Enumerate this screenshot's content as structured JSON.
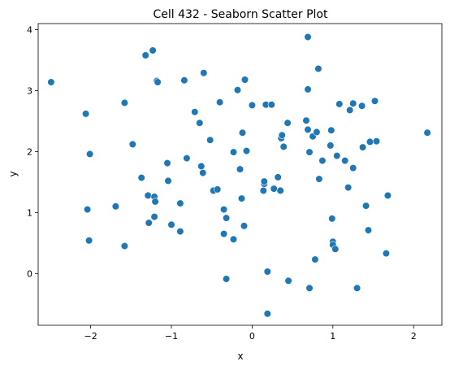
{
  "chart_data": {
    "type": "scatter",
    "title": "Cell 432 - Seaborn Scatter Plot",
    "xlabel": "x",
    "ylabel": "y",
    "xlim": [
      -2.65,
      2.35
    ],
    "ylim": [
      -0.85,
      4.1
    ],
    "xticks": [
      -2,
      -1,
      0,
      1,
      2
    ],
    "xtick_labels": [
      "−2",
      "−1",
      "0",
      "1",
      "2"
    ],
    "yticks": [
      0,
      1,
      2,
      3,
      4
    ],
    "ytick_labels": [
      "0",
      "1",
      "2",
      "3",
      "4"
    ],
    "grid": false,
    "legend": "none",
    "marker_color": "#1f77b4",
    "points": [
      {
        "x": -2.49,
        "y": 3.14
      },
      {
        "x": -2.06,
        "y": 2.62
      },
      {
        "x": -2.04,
        "y": 1.05
      },
      {
        "x": -2.02,
        "y": 0.54
      },
      {
        "x": -2.01,
        "y": 1.96
      },
      {
        "x": -1.69,
        "y": 1.1
      },
      {
        "x": -1.58,
        "y": 2.8
      },
      {
        "x": -1.58,
        "y": 0.45
      },
      {
        "x": -1.48,
        "y": 2.12
      },
      {
        "x": -1.37,
        "y": 1.57
      },
      {
        "x": -1.32,
        "y": 3.58
      },
      {
        "x": -1.29,
        "y": 1.28
      },
      {
        "x": -1.28,
        "y": 0.83
      },
      {
        "x": -1.23,
        "y": 3.66
      },
      {
        "x": -1.21,
        "y": 1.26
      },
      {
        "x": -1.21,
        "y": 0.93
      },
      {
        "x": -1.2,
        "y": 1.18
      },
      {
        "x": -1.18,
        "y": 3.16
      },
      {
        "x": -1.17,
        "y": 3.14
      },
      {
        "x": -1.05,
        "y": 1.81
      },
      {
        "x": -1.04,
        "y": 1.52
      },
      {
        "x": -1.0,
        "y": 0.8
      },
      {
        "x": -0.89,
        "y": 1.15
      },
      {
        "x": -0.89,
        "y": 0.69
      },
      {
        "x": -0.84,
        "y": 3.17
      },
      {
        "x": -0.81,
        "y": 1.89
      },
      {
        "x": -0.71,
        "y": 2.65
      },
      {
        "x": -0.65,
        "y": 2.47
      },
      {
        "x": -0.63,
        "y": 1.76
      },
      {
        "x": -0.61,
        "y": 1.65
      },
      {
        "x": -0.6,
        "y": 3.29
      },
      {
        "x": -0.52,
        "y": 2.19
      },
      {
        "x": -0.48,
        "y": 1.36
      },
      {
        "x": -0.43,
        "y": 1.38
      },
      {
        "x": -0.4,
        "y": 2.81
      },
      {
        "x": -0.35,
        "y": 1.05
      },
      {
        "x": -0.35,
        "y": 0.65
      },
      {
        "x": -0.32,
        "y": 0.91
      },
      {
        "x": -0.32,
        "y": -0.09
      },
      {
        "x": -0.23,
        "y": 0.56
      },
      {
        "x": -0.23,
        "y": 1.99
      },
      {
        "x": -0.18,
        "y": 3.01
      },
      {
        "x": -0.15,
        "y": 1.71
      },
      {
        "x": -0.13,
        "y": 1.23
      },
      {
        "x": -0.12,
        "y": 2.31
      },
      {
        "x": -0.1,
        "y": 0.78
      },
      {
        "x": -0.09,
        "y": 3.18
      },
      {
        "x": -0.07,
        "y": 2.01
      },
      {
        "x": 0.0,
        "y": 2.76
      },
      {
        "x": 0.14,
        "y": 1.36
      },
      {
        "x": 0.15,
        "y": 1.47
      },
      {
        "x": 0.15,
        "y": 1.51
      },
      {
        "x": 0.17,
        "y": 2.77
      },
      {
        "x": 0.19,
        "y": -0.66
      },
      {
        "x": 0.19,
        "y": 0.03
      },
      {
        "x": 0.24,
        "y": 2.77
      },
      {
        "x": 0.27,
        "y": 1.39
      },
      {
        "x": 0.32,
        "y": 1.58
      },
      {
        "x": 0.35,
        "y": 1.36
      },
      {
        "x": 0.36,
        "y": 2.22
      },
      {
        "x": 0.37,
        "y": 2.27
      },
      {
        "x": 0.39,
        "y": 2.08
      },
      {
        "x": 0.44,
        "y": 2.47
      },
      {
        "x": 0.45,
        "y": -0.12
      },
      {
        "x": 0.67,
        "y": 2.51
      },
      {
        "x": 0.69,
        "y": 3.88
      },
      {
        "x": 0.69,
        "y": 3.02
      },
      {
        "x": 0.69,
        "y": 2.36
      },
      {
        "x": 0.71,
        "y": 1.99
      },
      {
        "x": 0.71,
        "y": -0.24
      },
      {
        "x": 0.75,
        "y": 2.25
      },
      {
        "x": 0.78,
        "y": 0.23
      },
      {
        "x": 0.8,
        "y": 2.32
      },
      {
        "x": 0.82,
        "y": 3.36
      },
      {
        "x": 0.83,
        "y": 1.55
      },
      {
        "x": 0.87,
        "y": 1.85
      },
      {
        "x": 0.97,
        "y": 2.1
      },
      {
        "x": 0.98,
        "y": 2.35
      },
      {
        "x": 0.99,
        "y": 0.9
      },
      {
        "x": 1.0,
        "y": 0.52
      },
      {
        "x": 1.0,
        "y": 0.47
      },
      {
        "x": 1.03,
        "y": 0.4
      },
      {
        "x": 1.05,
        "y": 1.93
      },
      {
        "x": 1.08,
        "y": 2.78
      },
      {
        "x": 1.15,
        "y": 1.85
      },
      {
        "x": 1.19,
        "y": 1.41
      },
      {
        "x": 1.21,
        "y": 2.68
      },
      {
        "x": 1.25,
        "y": 2.79
      },
      {
        "x": 1.25,
        "y": 1.73
      },
      {
        "x": 1.3,
        "y": -0.24
      },
      {
        "x": 1.36,
        "y": 2.75
      },
      {
        "x": 1.37,
        "y": 2.07
      },
      {
        "x": 1.41,
        "y": 1.11
      },
      {
        "x": 1.44,
        "y": 0.71
      },
      {
        "x": 1.46,
        "y": 2.16
      },
      {
        "x": 1.52,
        "y": 2.83
      },
      {
        "x": 1.54,
        "y": 2.17
      },
      {
        "x": 1.66,
        "y": 0.33
      },
      {
        "x": 1.68,
        "y": 1.28
      },
      {
        "x": 2.17,
        "y": 2.31
      }
    ]
  }
}
